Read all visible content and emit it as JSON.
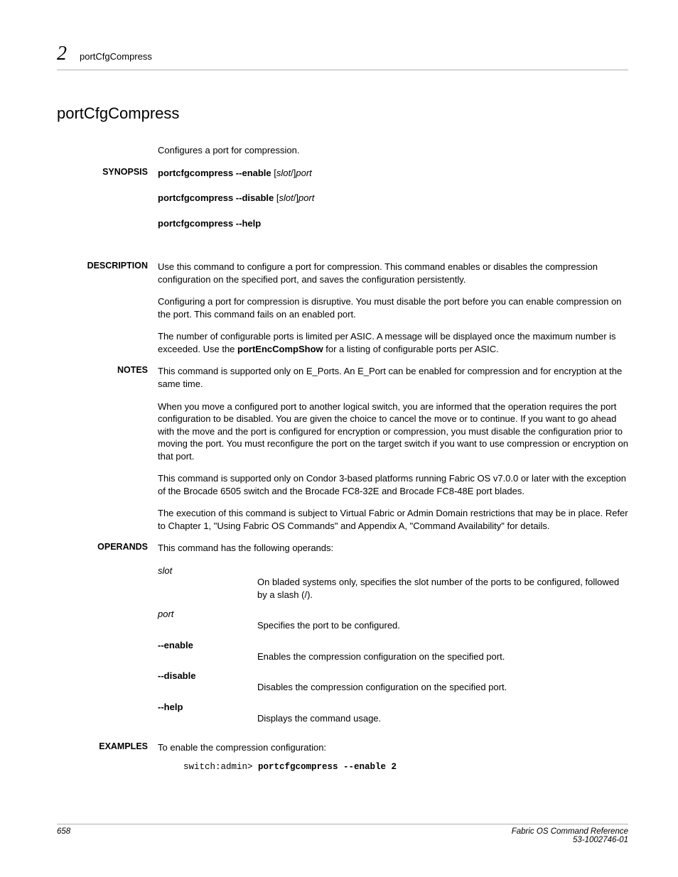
{
  "header": {
    "chapter_num": "2",
    "running_title": "portCfgCompress"
  },
  "title": "portCfgCompress",
  "short_desc": "Configures a port for compression.",
  "synopsis": {
    "label": "SYNOPSIS",
    "lines": [
      {
        "cmd": "portcfgcompress --enable ",
        "arg1": "[",
        "arg2": "slot",
        "arg3": "/]",
        "arg4": "port"
      },
      {
        "cmd": "portcfgcompress --disable ",
        "arg1": "[",
        "arg2": "slot",
        "arg3": "/]",
        "arg4": "port"
      },
      {
        "cmd": "portcfgcompress --help",
        "arg1": "",
        "arg2": "",
        "arg3": "",
        "arg4": ""
      }
    ]
  },
  "description": {
    "label": "DESCRIPTION",
    "paras": [
      "Use this command to configure a port for compression. This command enables or disables the compression configuration on the specified port, and saves the configuration persistently.",
      "Configuring a port for compression is disruptive. You must disable the port before you can enable compression on the port. This command fails on an enabled port.",
      "The number of configurable ports is limited per ASIC. A message will be displayed once the maximum number is exceeded. Use the <b>portEncCompShow</b> for a listing of configurable ports per ASIC."
    ]
  },
  "notes": {
    "label": "NOTES",
    "paras": [
      "This command is supported only on E_Ports. An E_Port can be enabled for compression and for encryption at the same time.",
      "When you move a configured port to another logical switch, you are informed that the operation requires the port configuration to be disabled. You are given the choice to cancel the move or to continue. If you want to go ahead with the move and the port is configured for encryption or compression, you must disable the configuration prior to moving the port. You must reconfigure the port on the target switch if you want to use compression or encryption on that port.",
      "This command is supported only on Condor 3-based platforms running Fabric OS v7.0.0 or later with the exception of the Brocade 6505 switch and the Brocade FC8-32E and Brocade FC8-48E port blades.",
      "The execution of this command is subject to Virtual Fabric or Admin Domain restrictions that may be in place. Refer to Chapter 1, \"Using Fabric OS Commands\" and Appendix A, \"Command Availability\" for details."
    ]
  },
  "operands": {
    "label": "OPERANDS",
    "intro": "This command has the following operands:",
    "items": [
      {
        "term": "slot",
        "term_style": "italic",
        "def": "On bladed systems only, specifies the slot number of the ports to be configured, followed by a slash (/)."
      },
      {
        "term": "port",
        "term_style": "italic",
        "def": "Specifies the port to be configured."
      },
      {
        "term": "--enable",
        "term_style": "bold",
        "def": "Enables the compression configuration on the specified port."
      },
      {
        "term": "--disable",
        "term_style": "bold",
        "def": "Disables the compression configuration on the specified port."
      },
      {
        "term": "--help",
        "term_style": "bold",
        "def": "Displays the command usage."
      }
    ]
  },
  "examples": {
    "label": "EXAMPLES",
    "intro": "To enable the compression configuration:",
    "code_prefix": "switch:admin> ",
    "code_cmd": "portcfgcompress --enable 2"
  },
  "footer": {
    "page_num": "658",
    "ref_line1": "Fabric OS Command Reference",
    "ref_line2": "53-1002746-01"
  }
}
